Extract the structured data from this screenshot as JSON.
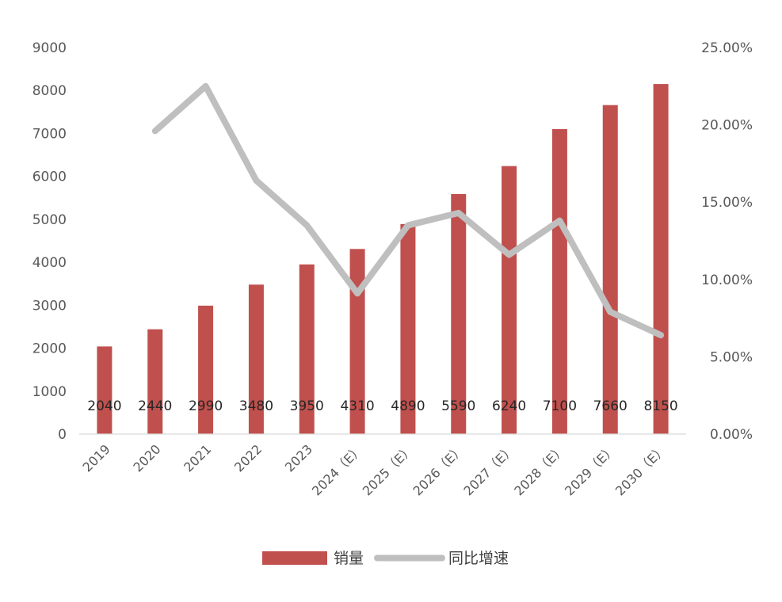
{
  "chart_data": {
    "type": "bar",
    "categories": [
      "2019",
      "2020",
      "2021",
      "2022",
      "2023",
      "2024（E）",
      "2025（E）",
      "2026（E）",
      "2027（E）",
      "2028（E）",
      "2029（E）",
      "2030（E）"
    ],
    "series": [
      {
        "name": "销量",
        "type": "bar",
        "axis": "left",
        "color": "#c0504d",
        "values": [
          2040,
          2440,
          2990,
          3480,
          3950,
          4310,
          4890,
          5590,
          6240,
          7100,
          7660,
          8150
        ]
      },
      {
        "name": "同比增速",
        "type": "line",
        "axis": "right",
        "color": "#bfbfbf",
        "values": [
          null,
          19.6,
          22.5,
          16.4,
          13.5,
          9.1,
          13.5,
          14.3,
          11.6,
          13.8,
          7.9,
          6.4
        ]
      }
    ],
    "data_labels": [
      "2040",
      "2440",
      "2990",
      "3480",
      "3950",
      "4310",
      "4890",
      "5590",
      "6240",
      "7100",
      "7660",
      "8150"
    ],
    "y_left": {
      "min": 0,
      "max": 9000,
      "ticks": [
        "0",
        "1000",
        "2000",
        "3000",
        "4000",
        "5000",
        "6000",
        "7000",
        "8000",
        "9000"
      ]
    },
    "y_right": {
      "min": 0,
      "max": 25,
      "ticks": [
        "0.00%",
        "5.00%",
        "10.00%",
        "15.00%",
        "20.00%",
        "25.00%"
      ]
    },
    "title": "",
    "xlabel": "",
    "ylabel": "",
    "grid": false,
    "legend_position": "bottom"
  }
}
